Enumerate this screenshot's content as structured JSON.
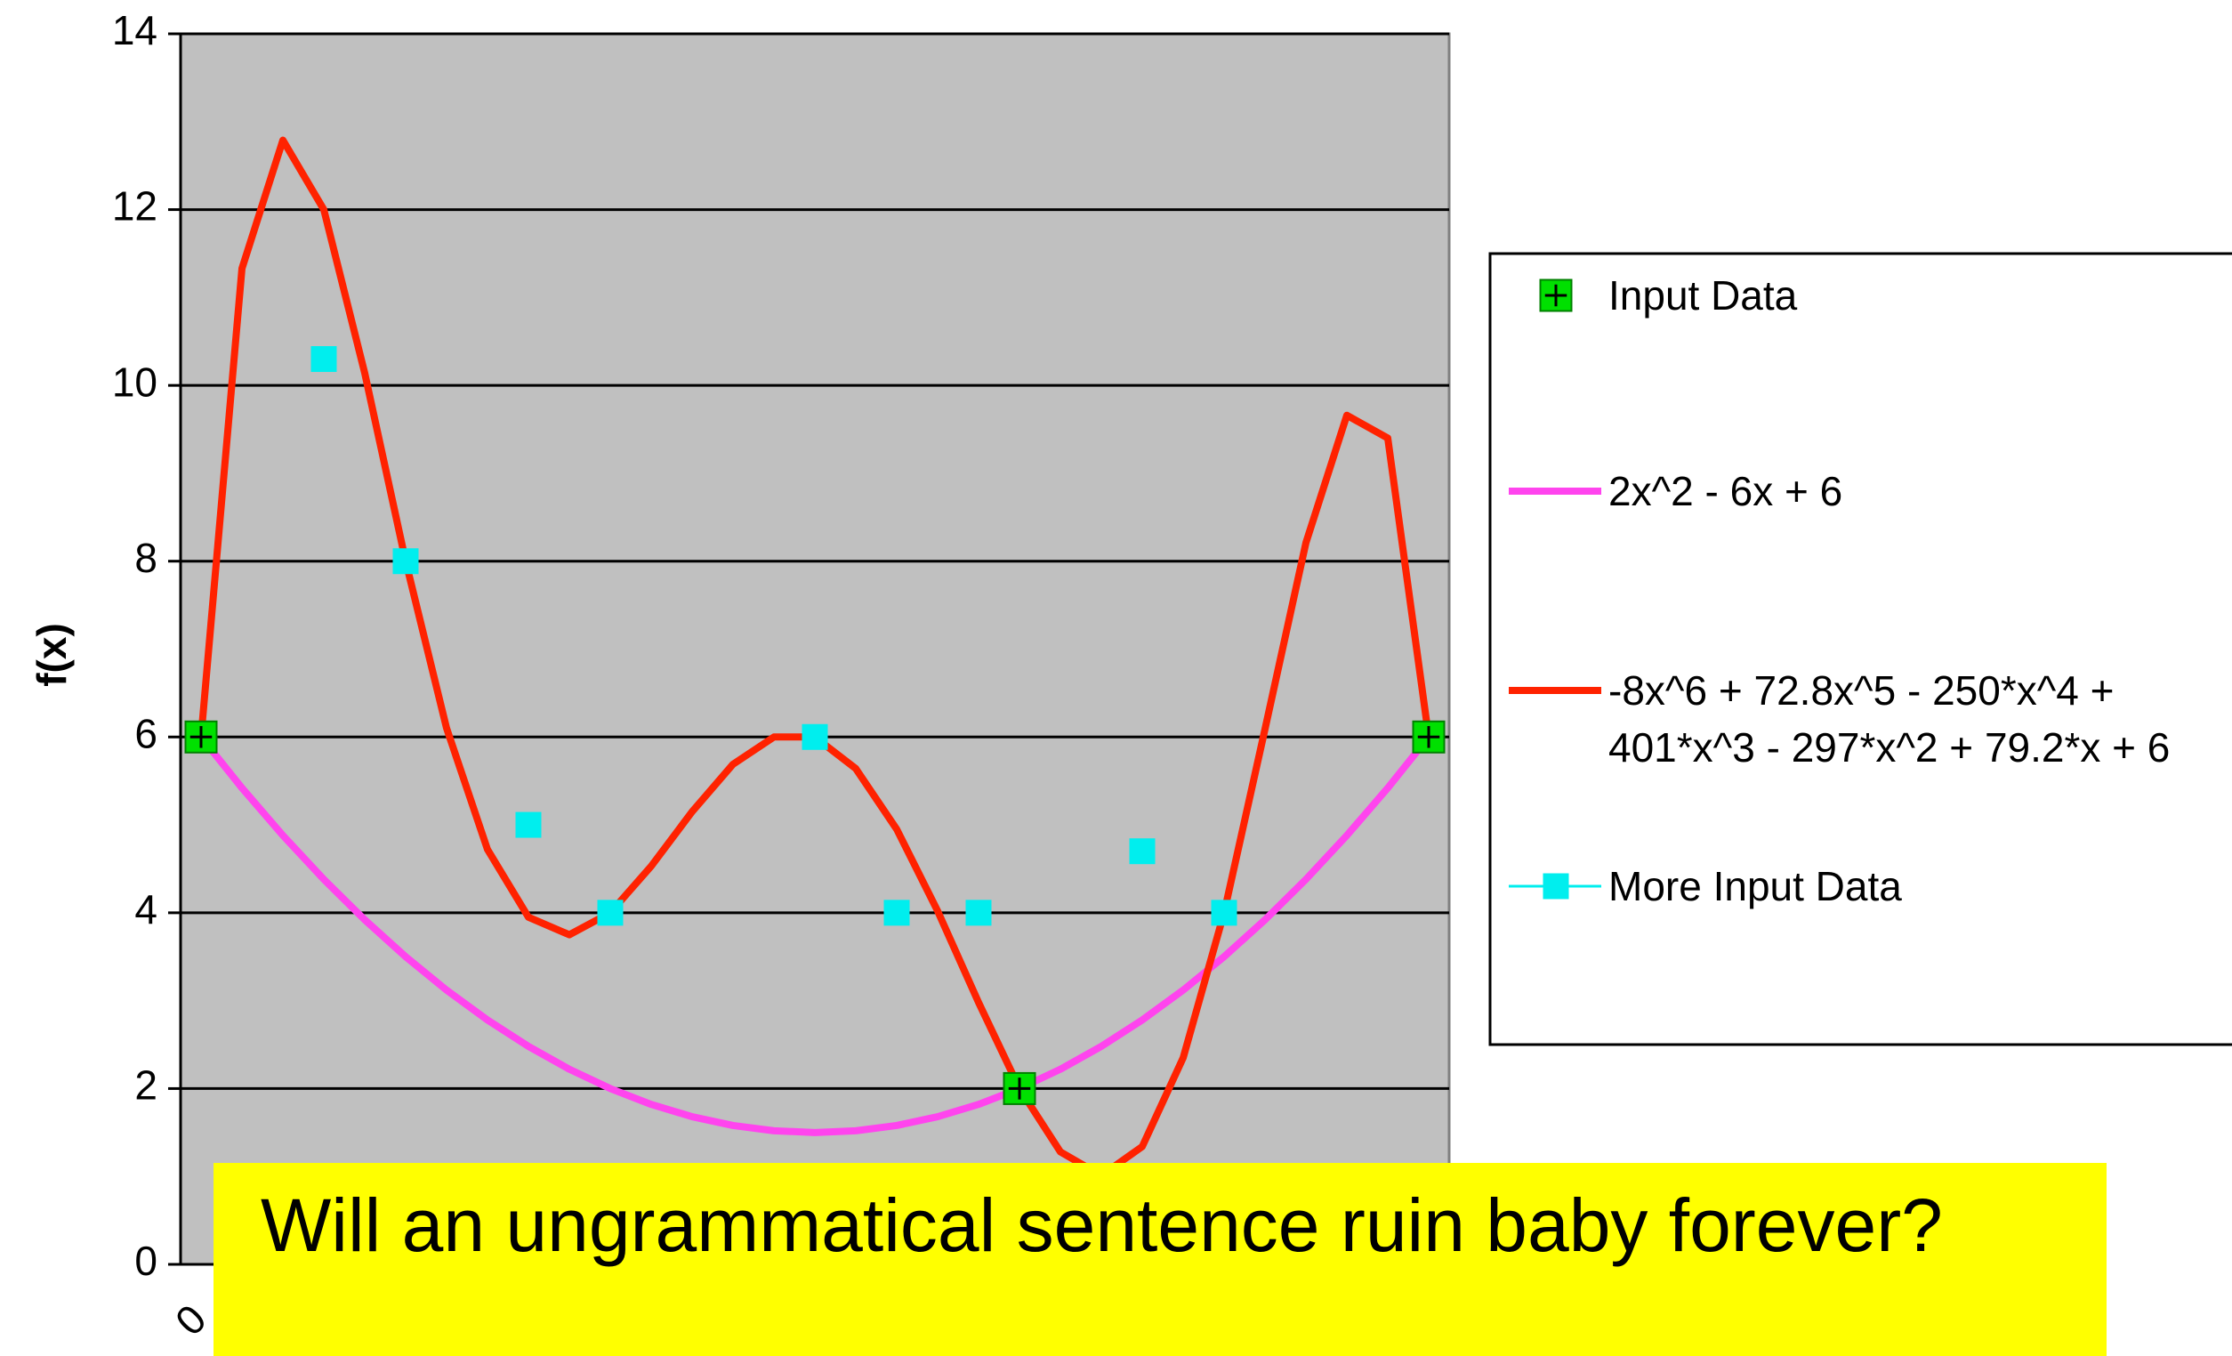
{
  "chart_data": {
    "type": "line",
    "ylabel": "f(x)",
    "annotation": "Will an ungrammatical sentence ruin baby forever?",
    "categories": [
      "0",
      null,
      null,
      null,
      null,
      null,
      null,
      null,
      null,
      null,
      null,
      null,
      null,
      null,
      null,
      null,
      null,
      null,
      null,
      null,
      null,
      null,
      null,
      null,
      null,
      null,
      null,
      null,
      null,
      null,
      null
    ],
    "ylim": [
      0,
      14
    ],
    "yticks": [
      0,
      2,
      4,
      6,
      8,
      10,
      12,
      14
    ],
    "grid": true,
    "legend": "right",
    "series": [
      {
        "name": "Input Data",
        "color": "#00e000",
        "line": false,
        "marker": "square-plus",
        "values": [
          6,
          null,
          null,
          null,
          null,
          null,
          null,
          null,
          null,
          null,
          null,
          null,
          null,
          null,
          null,
          null,
          null,
          null,
          null,
          null,
          2,
          null,
          null,
          null,
          null,
          null,
          null,
          null,
          null,
          null,
          6
        ]
      },
      {
        "name": "2x^2 - 6x + 6",
        "color": "#ff44ee",
        "line": true,
        "marker": "none",
        "values": [
          6,
          5.42,
          4.88,
          4.38,
          3.92,
          3.5,
          3.12,
          2.78,
          2.48,
          2.22,
          2,
          1.82,
          1.68,
          1.58,
          1.52,
          1.5,
          1.52,
          1.58,
          1.68,
          1.82,
          2,
          2.22,
          2.48,
          2.78,
          3.12,
          3.5,
          3.92,
          4.38,
          4.88,
          5.42,
          6
        ]
      },
      {
        "name": "-8x^6 + 72.8x^5 - 250*x^4 + 401*x^3 - 297*x^2 + 79.2*x + 6",
        "color": "#ff2200",
        "line": true,
        "marker": "none",
        "values": [
          6,
          11.33,
          12.79,
          12.0,
          10.14,
          8.0,
          6.1,
          4.72,
          3.95,
          3.75,
          4.0,
          4.53,
          5.15,
          5.69,
          6.0,
          6.0,
          5.64,
          4.95,
          4.02,
          2.98,
          2.0,
          1.28,
          1.01,
          1.34,
          2.35,
          4.0,
          6.09,
          8.21,
          9.66,
          9.4,
          6
        ]
      },
      {
        "name": "More Input Data",
        "color": "#00eeee",
        "line": false,
        "marker": "square",
        "values": [
          null,
          null,
          null,
          10.3,
          null,
          8,
          null,
          null,
          5,
          null,
          4,
          null,
          null,
          null,
          null,
          6,
          null,
          4,
          null,
          4,
          null,
          null,
          null,
          4.7,
          null,
          4,
          null,
          null,
          null,
          null,
          null
        ]
      }
    ]
  }
}
